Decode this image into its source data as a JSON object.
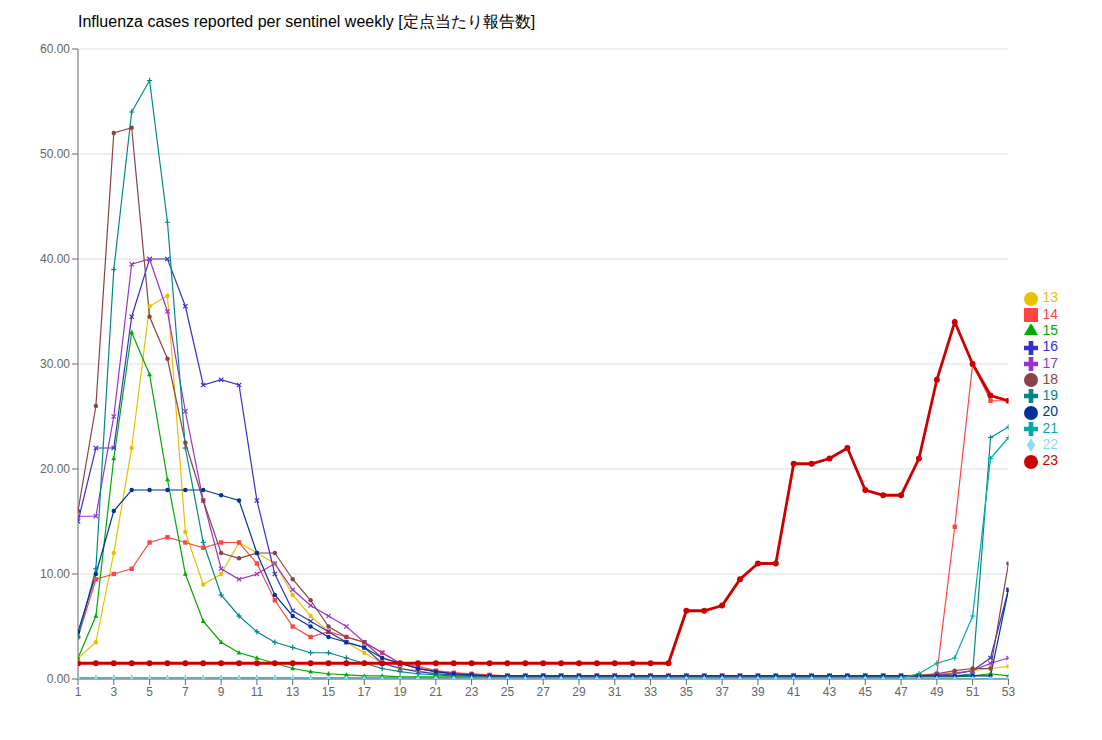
{
  "chart_data": {
    "type": "line",
    "title": "Influenza cases reported per sentinel weekly [定点当たり報告数]",
    "x": [
      1,
      2,
      3,
      4,
      5,
      6,
      7,
      8,
      9,
      10,
      11,
      12,
      13,
      14,
      15,
      16,
      17,
      18,
      19,
      20,
      21,
      22,
      23,
      24,
      25,
      26,
      27,
      28,
      29,
      30,
      31,
      32,
      33,
      34,
      35,
      36,
      37,
      38,
      39,
      40,
      41,
      42,
      43,
      44,
      45,
      46,
      47,
      48,
      49,
      50,
      51,
      52,
      53
    ],
    "xlim": [
      1,
      53
    ],
    "ylim": [
      0,
      60
    ],
    "xticks": [
      1,
      3,
      5,
      7,
      9,
      11,
      13,
      15,
      17,
      19,
      21,
      23,
      25,
      27,
      29,
      31,
      33,
      35,
      37,
      39,
      41,
      43,
      45,
      47,
      49,
      51,
      53
    ],
    "yticks": [
      {
        "value": 0,
        "label": "0.00"
      },
      {
        "value": 10,
        "label": "10.00"
      },
      {
        "value": 20,
        "label": "20.00"
      },
      {
        "value": 30,
        "label": "30.00"
      },
      {
        "value": 40,
        "label": "40.00"
      },
      {
        "value": 50,
        "label": "50.00"
      },
      {
        "value": 60,
        "label": "60.00"
      }
    ],
    "grid": "y",
    "legend": "right",
    "series": [
      {
        "name": "13",
        "color": "#E8C000",
        "marker": "circle",
        "values": [
          2.0,
          3.5,
          12.0,
          22.0,
          35.5,
          36.5,
          14.0,
          9.0,
          10.0,
          13.0,
          12.0,
          11.0,
          8.0,
          6.0,
          4.5,
          3.5,
          2.5,
          1.5,
          1.0,
          0.8,
          0.5,
          0.4,
          0.3,
          0.3,
          0.3,
          0.3,
          0.3,
          0.3,
          0.3,
          0.3,
          0.3,
          0.3,
          0.3,
          0.3,
          0.3,
          0.3,
          0.3,
          0.3,
          0.3,
          0.3,
          0.3,
          0.3,
          0.3,
          0.3,
          0.3,
          0.3,
          0.3,
          0.4,
          0.5,
          0.6,
          0.8,
          1.0,
          1.2
        ]
      },
      {
        "name": "14",
        "color": "#FF4444",
        "marker": "square",
        "values": [
          4.0,
          9.5,
          10.0,
          10.5,
          13.0,
          13.5,
          13.0,
          12.5,
          13.0,
          13.0,
          11.0,
          7.5,
          5.0,
          4.0,
          4.5,
          4.0,
          3.5,
          2.5,
          1.5,
          1.2,
          0.8,
          0.6,
          0.5,
          0.4,
          0.3,
          0.3,
          0.3,
          0.3,
          0.3,
          0.3,
          0.3,
          0.3,
          0.3,
          0.3,
          0.3,
          0.3,
          0.3,
          0.3,
          0.3,
          0.3,
          0.3,
          0.3,
          0.3,
          0.3,
          0.3,
          0.3,
          0.3,
          0.3,
          0.5,
          14.5,
          30.0,
          26.5,
          26.5
        ]
      },
      {
        "name": "15",
        "color": "#00AA00",
        "marker": "triangle",
        "values": [
          2.0,
          6.0,
          21.0,
          33.0,
          29.0,
          19.0,
          10.0,
          5.5,
          3.5,
          2.5,
          2.0,
          1.5,
          1.0,
          0.7,
          0.5,
          0.4,
          0.3,
          0.3,
          0.2,
          0.2,
          0.2,
          0.2,
          0.2,
          0.2,
          0.2,
          0.2,
          0.2,
          0.2,
          0.2,
          0.2,
          0.2,
          0.2,
          0.2,
          0.2,
          0.2,
          0.2,
          0.2,
          0.2,
          0.2,
          0.2,
          0.2,
          0.2,
          0.2,
          0.2,
          0.2,
          0.2,
          0.2,
          0.2,
          0.2,
          0.2,
          0.3,
          0.5,
          0.3
        ]
      },
      {
        "name": "16",
        "color": "#3333CC",
        "marker": "x",
        "values": [
          15.0,
          22.0,
          22.0,
          34.5,
          40.0,
          40.0,
          35.5,
          28.0,
          28.5,
          28.0,
          17.0,
          10.0,
          6.5,
          5.5,
          4.5,
          3.5,
          3.0,
          1.5,
          1.0,
          0.7,
          0.5,
          0.4,
          0.3,
          0.3,
          0.3,
          0.3,
          0.3,
          0.3,
          0.3,
          0.3,
          0.3,
          0.3,
          0.3,
          0.3,
          0.3,
          0.3,
          0.3,
          0.3,
          0.3,
          0.3,
          0.3,
          0.3,
          0.3,
          0.3,
          0.3,
          0.3,
          0.3,
          0.3,
          0.4,
          0.5,
          0.8,
          2.0,
          8.5
        ]
      },
      {
        "name": "17",
        "color": "#9933CC",
        "marker": "x",
        "values": [
          15.5,
          15.5,
          25.0,
          39.5,
          40.0,
          35.0,
          25.5,
          17.0,
          10.5,
          9.5,
          10.0,
          11.0,
          8.5,
          7.0,
          6.0,
          5.0,
          3.5,
          2.5,
          1.5,
          1.0,
          0.7,
          0.5,
          0.4,
          0.3,
          0.3,
          0.3,
          0.3,
          0.3,
          0.3,
          0.3,
          0.3,
          0.3,
          0.3,
          0.3,
          0.3,
          0.3,
          0.3,
          0.3,
          0.3,
          0.3,
          0.3,
          0.3,
          0.3,
          0.3,
          0.3,
          0.3,
          0.3,
          0.3,
          0.4,
          0.5,
          0.8,
          1.5,
          2.0
        ]
      },
      {
        "name": "18",
        "color": "#884444",
        "marker": "circle",
        "values": [
          16.0,
          26.0,
          52.0,
          52.5,
          34.5,
          30.5,
          22.5,
          17.0,
          12.0,
          11.5,
          12.0,
          12.0,
          9.5,
          7.5,
          5.0,
          4.0,
          3.5,
          2.0,
          1.5,
          1.0,
          0.7,
          0.5,
          0.4,
          0.3,
          0.3,
          0.3,
          0.3,
          0.3,
          0.3,
          0.3,
          0.3,
          0.3,
          0.3,
          0.3,
          0.3,
          0.3,
          0.3,
          0.3,
          0.3,
          0.3,
          0.3,
          0.3,
          0.3,
          0.3,
          0.3,
          0.3,
          0.3,
          0.3,
          0.5,
          0.8,
          1.0,
          1.0,
          11.0
        ]
      },
      {
        "name": "19",
        "color": "#008888",
        "marker": "plus",
        "values": [
          4.0,
          10.5,
          39.0,
          54.0,
          57.0,
          43.5,
          22.0,
          13.0,
          8.0,
          6.0,
          4.5,
          3.5,
          3.0,
          2.5,
          2.5,
          2.0,
          1.5,
          1.0,
          0.7,
          0.5,
          0.4,
          0.3,
          0.3,
          0.3,
          0.3,
          0.3,
          0.3,
          0.3,
          0.3,
          0.3,
          0.3,
          0.3,
          0.3,
          0.3,
          0.3,
          0.3,
          0.3,
          0.3,
          0.3,
          0.3,
          0.3,
          0.3,
          0.3,
          0.3,
          0.3,
          0.3,
          0.3,
          0.3,
          0.3,
          0.3,
          0.5,
          23.0,
          24.0
        ]
      },
      {
        "name": "20",
        "color": "#003399",
        "marker": "circle",
        "values": [
          4.5,
          10.0,
          16.0,
          18.0,
          18.0,
          18.0,
          18.0,
          18.0,
          17.5,
          17.0,
          12.0,
          8.0,
          6.0,
          5.0,
          4.0,
          3.5,
          3.0,
          2.0,
          1.5,
          1.0,
          0.7,
          0.5,
          0.4,
          0.3,
          0.3,
          0.3,
          0.3,
          0.3,
          0.3,
          0.3,
          0.3,
          0.3,
          0.3,
          0.3,
          0.3,
          0.3,
          0.3,
          0.3,
          0.3,
          0.3,
          0.3,
          0.3,
          0.3,
          0.3,
          0.3,
          0.3,
          0.3,
          0.3,
          0.3,
          0.3,
          0.3,
          0.3,
          8.5
        ]
      },
      {
        "name": "21",
        "color": "#00AAAA",
        "marker": "plus",
        "values": [
          0.1,
          0.1,
          0.1,
          0.1,
          0.1,
          0.1,
          0.1,
          0.1,
          0.1,
          0.1,
          0.1,
          0.1,
          0.1,
          0.1,
          0.1,
          0.1,
          0.1,
          0.1,
          0.1,
          0.1,
          0.1,
          0.1,
          0.1,
          0.1,
          0.1,
          0.1,
          0.1,
          0.1,
          0.1,
          0.1,
          0.1,
          0.1,
          0.1,
          0.1,
          0.1,
          0.1,
          0.1,
          0.1,
          0.1,
          0.1,
          0.1,
          0.1,
          0.1,
          0.1,
          0.1,
          0.1,
          0.1,
          0.5,
          1.5,
          2.0,
          6.0,
          21.0,
          23.0
        ]
      },
      {
        "name": "22",
        "color": "#88DDFF",
        "marker": "diamond",
        "values": [
          0.05,
          0.05,
          0.05,
          0.05,
          0.05,
          0.05,
          0.05,
          0.05,
          0.05,
          0.05,
          0.05,
          0.05,
          0.05,
          0.05,
          0.05,
          0.05,
          0.05,
          0.05,
          0.05,
          0.05,
          0.05,
          0.05,
          0.05,
          0.05,
          0.05,
          0.05,
          0.05,
          0.05,
          0.05,
          0.05,
          0.05,
          0.05,
          0.05,
          0.05,
          0.05,
          0.05,
          0.05,
          0.05,
          0.05,
          0.05,
          0.05,
          0.05,
          0.05,
          0.05,
          0.05,
          0.05,
          0.05,
          0.05,
          0.05,
          0.05,
          0.05,
          0.05,
          0.05
        ]
      },
      {
        "name": "23",
        "color": "#CC0000",
        "marker": "circle",
        "values": [
          1.5,
          1.5,
          1.5,
          1.5,
          1.5,
          1.5,
          1.5,
          1.5,
          1.5,
          1.5,
          1.5,
          1.5,
          1.5,
          1.5,
          1.5,
          1.5,
          1.5,
          1.5,
          1.5,
          1.5,
          1.5,
          1.5,
          1.5,
          1.5,
          1.5,
          1.5,
          1.5,
          1.5,
          1.5,
          1.5,
          1.5,
          1.5,
          1.5,
          1.5,
          6.5,
          6.5,
          7.0,
          9.5,
          11.0,
          11.0,
          20.5,
          20.5,
          21.0,
          22.0,
          18.0,
          17.5,
          17.5,
          21.0,
          28.5,
          34.0,
          30.0,
          27.0,
          26.5
        ]
      }
    ]
  }
}
